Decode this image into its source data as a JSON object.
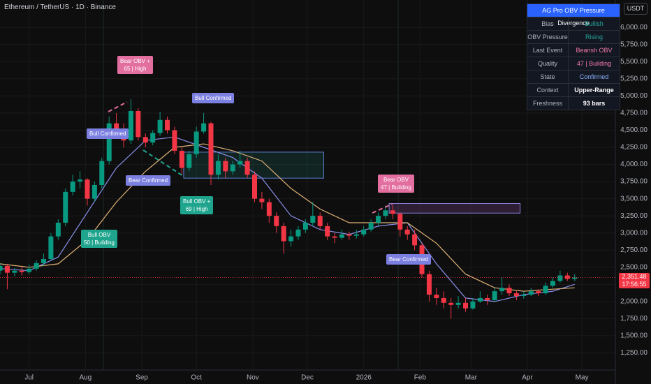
{
  "chart_data": {
    "type": "candlestick",
    "title": "Ethereum / TetherUS · 1D · Binance",
    "unit": "USDT",
    "up_color": "#089981",
    "down_color": "#f23645",
    "xlim": [
      -16,
      322
    ],
    "ylim": [
      1000,
      6400
    ],
    "xticks": [
      {
        "value": 0,
        "label": "Jul"
      },
      {
        "value": 31,
        "label": "Aug"
      },
      {
        "value": 62,
        "label": "Sep"
      },
      {
        "value": 92,
        "label": "Oct"
      },
      {
        "value": 123,
        "label": "Nov"
      },
      {
        "value": 153,
        "label": "Dec"
      },
      {
        "value": 184,
        "label": "2026"
      },
      {
        "value": 215,
        "label": "Feb"
      },
      {
        "value": 243,
        "label": "Mar"
      },
      {
        "value": 274,
        "label": "Apr"
      },
      {
        "value": 304,
        "label": "May"
      }
    ],
    "yticks": [
      {
        "value": 1250,
        "label": "1,250.00"
      },
      {
        "value": 1500,
        "label": "1,500.00"
      },
      {
        "value": 1750,
        "label": "1,750.00"
      },
      {
        "value": 2000,
        "label": "2,000.00"
      },
      {
        "value": 2250,
        "label": "2,250.00"
      },
      {
        "value": 2500,
        "label": "2,500.00"
      },
      {
        "value": 2750,
        "label": "2,750.00"
      },
      {
        "value": 3000,
        "label": "3,000.00"
      },
      {
        "value": 3250,
        "label": "3,250.00"
      },
      {
        "value": 3500,
        "label": "3,500.00"
      },
      {
        "value": 3750,
        "label": "3,750.00"
      },
      {
        "value": 4000,
        "label": "4,000.00"
      },
      {
        "value": 4250,
        "label": "4,250.00"
      },
      {
        "value": 4500,
        "label": "4,500.00"
      },
      {
        "value": 4750,
        "label": "4,750.00"
      },
      {
        "value": 5000,
        "label": "5,000.00"
      },
      {
        "value": 5250,
        "label": "5,250.00"
      },
      {
        "value": 5500,
        "label": "5,500.00"
      },
      {
        "value": 5750,
        "label": "5,750.00"
      },
      {
        "value": 6000,
        "label": "6,000.00"
      }
    ],
    "grid": true,
    "x": [
      -16,
      -12,
      -8,
      -4,
      0,
      4,
      8,
      12,
      16,
      20,
      24,
      28,
      32,
      36,
      40,
      44,
      48,
      52,
      56,
      60,
      64,
      68,
      72,
      76,
      80,
      84,
      88,
      92,
      96,
      100,
      104,
      108,
      112,
      116,
      120,
      124,
      128,
      132,
      136,
      140,
      144,
      148,
      152,
      156,
      160,
      164,
      168,
      172,
      176,
      180,
      184,
      188,
      192,
      196,
      200,
      204,
      208,
      212,
      216,
      220,
      224,
      228,
      232,
      236,
      240,
      244,
      248,
      252,
      256,
      260,
      264,
      268,
      272,
      276,
      280,
      284,
      288,
      292,
      296,
      300
    ],
    "ohlc": [
      [
        2450,
        2560,
        2400,
        2520
      ],
      [
        2520,
        2550,
        2180,
        2420
      ],
      [
        2420,
        2490,
        2370,
        2450
      ],
      [
        2450,
        2510,
        2380,
        2430
      ],
      [
        2430,
        2540,
        2400,
        2480
      ],
      [
        2480,
        2600,
        2450,
        2560
      ],
      [
        2560,
        2700,
        2520,
        2620
      ],
      [
        2620,
        3000,
        2600,
        2950
      ],
      [
        2950,
        3200,
        2900,
        3150
      ],
      [
        3150,
        3650,
        3100,
        3600
      ],
      [
        3600,
        3850,
        3550,
        3750
      ],
      [
        3750,
        3900,
        3650,
        3780
      ],
      [
        3780,
        3800,
        3400,
        3500
      ],
      [
        3500,
        3750,
        3450,
        3700
      ],
      [
        3700,
        4100,
        3650,
        4050
      ],
      [
        4050,
        4700,
        4000,
        4600
      ],
      [
        4600,
        4750,
        4400,
        4500
      ],
      [
        4500,
        4600,
        4250,
        4350
      ],
      [
        4350,
        4950,
        4300,
        4780
      ],
      [
        4780,
        4820,
        4350,
        4400
      ],
      [
        4400,
        4450,
        4250,
        4320
      ],
      [
        4320,
        4500,
        4280,
        4460
      ],
      [
        4460,
        4770,
        4420,
        4650
      ],
      [
        4650,
        4700,
        4450,
        4500
      ],
      [
        4500,
        4550,
        4150,
        4200
      ],
      [
        4200,
        4250,
        3850,
        3950
      ],
      [
        3950,
        4200,
        3900,
        4150
      ],
      [
        4150,
        4550,
        4100,
        4480
      ],
      [
        4480,
        4750,
        4450,
        4600
      ],
      [
        4600,
        4620,
        3700,
        3850
      ],
      [
        3850,
        4150,
        3780,
        4050
      ],
      [
        4050,
        4100,
        3800,
        3900
      ],
      [
        3900,
        4050,
        3850,
        4000
      ],
      [
        4000,
        4200,
        3950,
        4050
      ],
      [
        4050,
        4100,
        3800,
        3850
      ],
      [
        3850,
        3900,
        3450,
        3500
      ],
      [
        3500,
        3600,
        3350,
        3450
      ],
      [
        3450,
        3500,
        3150,
        3250
      ],
      [
        3250,
        3300,
        3000,
        3100
      ],
      [
        3100,
        3150,
        2700,
        2880
      ],
      [
        2880,
        3050,
        2800,
        2950
      ],
      [
        2950,
        3100,
        2900,
        3050
      ],
      [
        3050,
        3200,
        3000,
        3150
      ],
      [
        3150,
        3450,
        3100,
        3250
      ],
      [
        3250,
        3300,
        3050,
        3100
      ],
      [
        3100,
        3150,
        2900,
        2950
      ],
      [
        2950,
        3000,
        2850,
        2930
      ],
      [
        2930,
        3050,
        2900,
        2980
      ],
      [
        2980,
        3020,
        2900,
        2960
      ],
      [
        2960,
        3050,
        2920,
        2980
      ],
      [
        2980,
        3100,
        2950,
        3050
      ],
      [
        3050,
        3200,
        3020,
        3150
      ],
      [
        3150,
        3300,
        3100,
        3250
      ],
      [
        3250,
        3400,
        3200,
        3330
      ],
      [
        3330,
        3400,
        3200,
        3280
      ],
      [
        3280,
        3300,
        2950,
        3050
      ],
      [
        3050,
        3100,
        2900,
        2980
      ],
      [
        2980,
        3050,
        2750,
        2820
      ],
      [
        2820,
        2850,
        2350,
        2400
      ],
      [
        2400,
        2450,
        2000,
        2100
      ],
      [
        2100,
        2200,
        1950,
        2050
      ],
      [
        2050,
        2150,
        1900,
        1980
      ],
      [
        1980,
        2050,
        1750,
        1950
      ],
      [
        1950,
        2080,
        1900,
        1980
      ],
      [
        1980,
        2050,
        1850,
        1900
      ],
      [
        1900,
        2050,
        1880,
        2000
      ],
      [
        2000,
        2150,
        1980,
        2050
      ],
      [
        2050,
        2100,
        1950,
        2020
      ],
      [
        2020,
        2200,
        2000,
        2150
      ],
      [
        2150,
        2350,
        2100,
        2200
      ],
      [
        2200,
        2250,
        2080,
        2120
      ],
      [
        2120,
        2150,
        2020,
        2080
      ],
      [
        2080,
        2150,
        2040,
        2100
      ],
      [
        2100,
        2200,
        2080,
        2150
      ],
      [
        2150,
        2180,
        2080,
        2120
      ],
      [
        2120,
        2280,
        2100,
        2230
      ],
      [
        2230,
        2350,
        2200,
        2300
      ],
      [
        2300,
        2450,
        2280,
        2380
      ],
      [
        2380,
        2420,
        2300,
        2330
      ],
      [
        2330,
        2400,
        2300,
        2350
      ]
    ],
    "lines": [
      {
        "color": "#8a8fe8",
        "x": [
          -16,
          0,
          16,
          32,
          48,
          64,
          80,
          96,
          112,
          128,
          144,
          160,
          176,
          192,
          208,
          224,
          240,
          256,
          272,
          288,
          300
        ],
        "values": [
          2480,
          2450,
          2650,
          3300,
          3950,
          4350,
          4400,
          4250,
          4100,
          3800,
          3250,
          3050,
          2980,
          3100,
          3150,
          2550,
          2050,
          2000,
          2100,
          2150,
          2250
        ]
      },
      {
        "color": "#e0b277",
        "x": [
          -16,
          0,
          16,
          32,
          48,
          64,
          80,
          96,
          112,
          128,
          144,
          160,
          176,
          192,
          208,
          224,
          240,
          256,
          272,
          288,
          300
        ],
        "values": [
          2550,
          2500,
          2550,
          2900,
          3450,
          3900,
          4250,
          4300,
          4200,
          4050,
          3650,
          3350,
          3150,
          3150,
          3150,
          2850,
          2400,
          2200,
          2150,
          2180,
          2200
        ]
      }
    ],
    "zones": [
      {
        "x": [
          85,
          162
        ],
        "y": [
          3800,
          4180
        ],
        "fill": "rgba(38,166,154,0.15)",
        "stroke": "#5b7fd1"
      },
      {
        "x": [
          198,
          270
        ],
        "y": [
          3290,
          3430
        ],
        "fill": "rgba(120,70,140,0.3)",
        "stroke": "#8a7fd8"
      }
    ],
    "last_price": {
      "value": 2351.48,
      "label": "2,351.48"
    },
    "countdown": "17:56:55",
    "annotations": [
      {
        "text": [
          "Bear OBV +",
          "65 | High"
        ],
        "color": "#e36fa0"
      },
      {
        "text": [
          "Bull Confirmed"
        ],
        "color": "#7b7fe0"
      },
      {
        "text": [
          "Bull Confirmed"
        ],
        "color": "#7b7fe0"
      },
      {
        "text": [
          "Bear Confirmed"
        ],
        "color": "#7b7fe0"
      },
      {
        "text": [
          "Bull OBV +",
          "69 | High"
        ],
        "color": "#1fa58d"
      },
      {
        "text": [
          "Bull OBV",
          "50 | Building"
        ],
        "color": "#1fa58d"
      },
      {
        "text": [
          "Bear OBV",
          "47 | Building"
        ],
        "color": "#e36fa0"
      },
      {
        "text": [
          "Bear Confirmed"
        ],
        "color": "#7b7fe0"
      }
    ]
  },
  "table": {
    "title": "AG Pro OBV Pressure Divergence",
    "rows": [
      {
        "label": "Bias",
        "value": "Bullish",
        "color": "#26a69a"
      },
      {
        "label": "OBV Pressure",
        "value": "Rising",
        "color": "#26a69a"
      },
      {
        "label": "Last Event",
        "value": "Bearish OBV",
        "color": "#f07aa8"
      },
      {
        "label": "Quality",
        "value": "47 | Building",
        "color": "#f07aa8"
      },
      {
        "label": "State",
        "value": "Confirmed",
        "color": "#8fb3ff"
      },
      {
        "label": "Context",
        "value": "Upper-Range",
        "color": "#ffffff"
      },
      {
        "label": "Freshness",
        "value": "93 bars",
        "color": "#ffffff"
      }
    ]
  }
}
